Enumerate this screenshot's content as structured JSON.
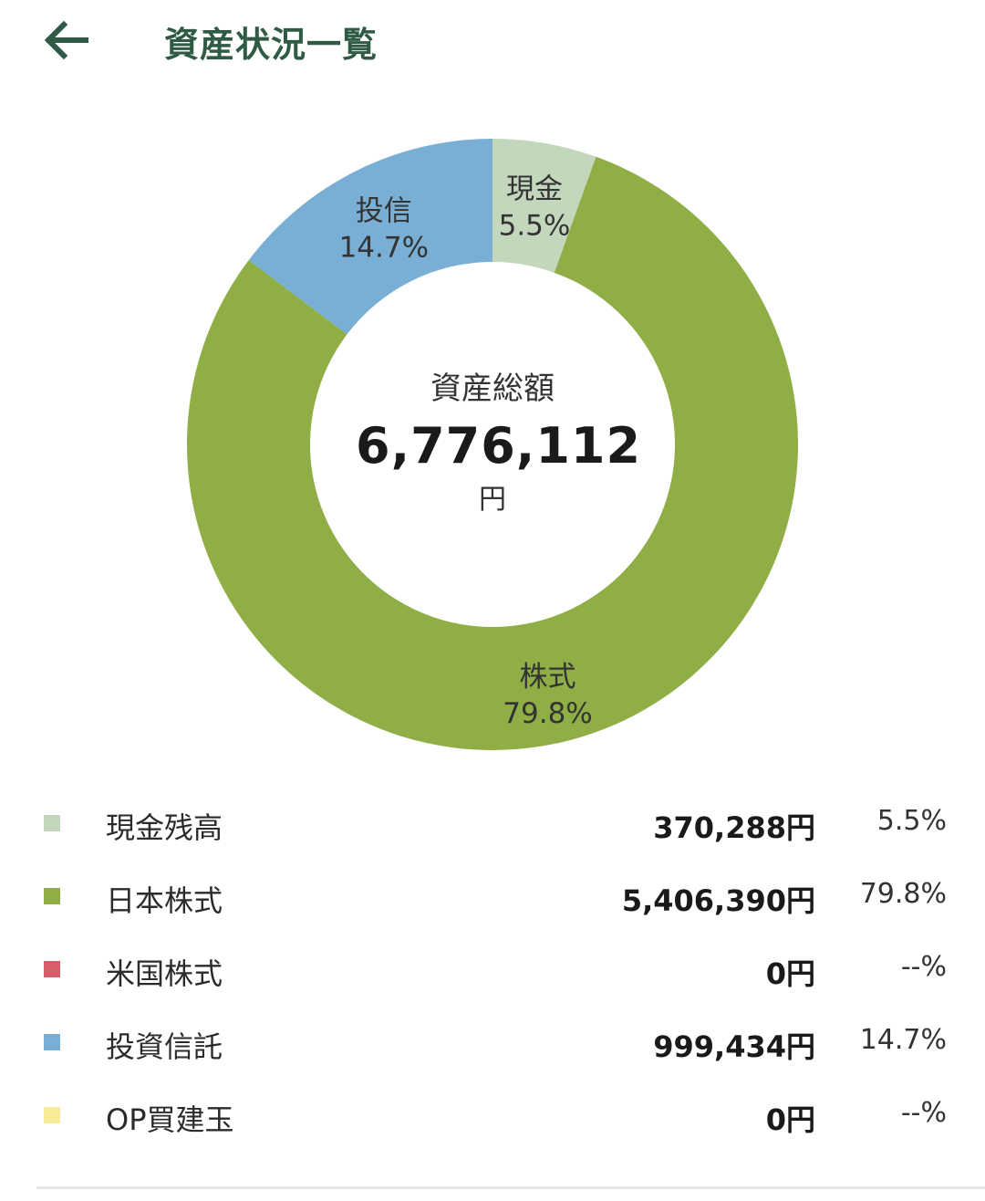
{
  "header": {
    "title": "資産状況一覧",
    "back_icon": "arrow-left-icon",
    "accent_color": "#2f5a43"
  },
  "summary": {
    "label": "資産総額",
    "value": "6,776,112",
    "unit": "円"
  },
  "chart_data": {
    "type": "pie",
    "style": "donut",
    "slices": [
      {
        "label": "現金",
        "percent_text": "5.5%",
        "value": 5.5,
        "color": "#c3d7bd"
      },
      {
        "label": "株式",
        "percent_text": "79.8%",
        "value": 79.8,
        "color": "#8fae46"
      },
      {
        "label": "投信",
        "percent_text": "14.7%",
        "value": 14.7,
        "color": "#79afd4"
      }
    ]
  },
  "legend": {
    "rows": [
      {
        "name": "現金残高",
        "amount": "370,288円",
        "percent": "5.5%",
        "color": "#c3d7bd"
      },
      {
        "name": "日本株式",
        "amount": "5,406,390円",
        "percent": "79.8%",
        "color": "#8fae46"
      },
      {
        "name": "米国株式",
        "amount": "0円",
        "percent": "--%",
        "color": "#d75d6b"
      },
      {
        "name": "投資信託",
        "amount": "999,434円",
        "percent": "14.7%",
        "color": "#79afd4"
      },
      {
        "name": "OP買建玉",
        "amount": "0円",
        "percent": "--%",
        "color": "#f8eb98"
      }
    ]
  }
}
